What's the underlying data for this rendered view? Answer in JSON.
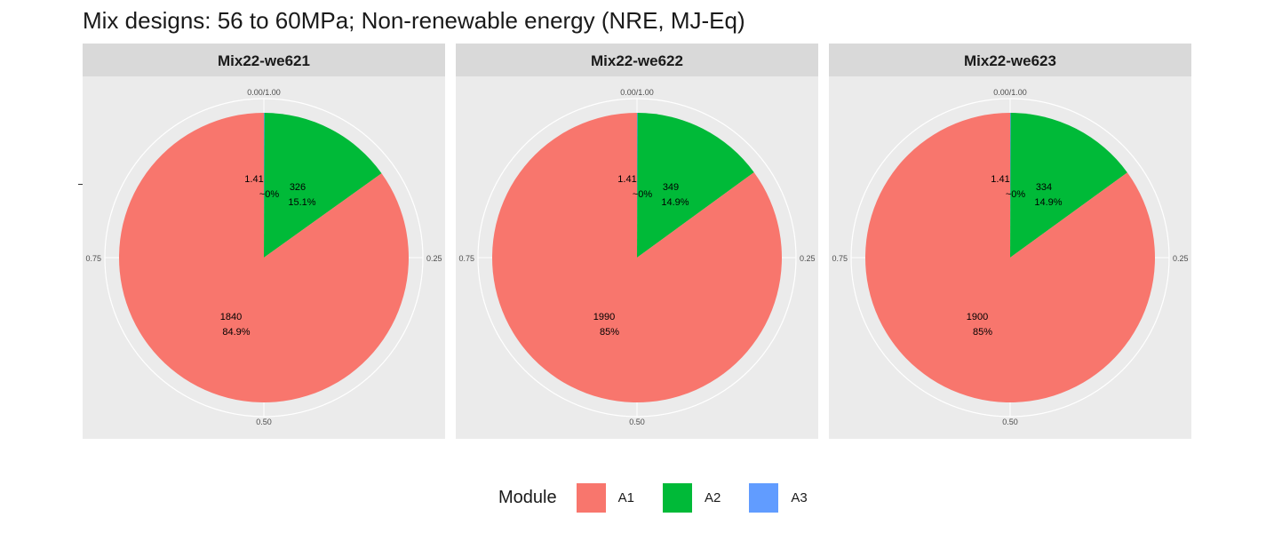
{
  "chart_data": {
    "type": "pie",
    "title": "Mix designs: 56 to 60MPa; Non-renewable energy (NRE, MJ-Eq)",
    "theta_ticks": [
      "0.00/1.00",
      "0.25",
      "0.50",
      "0.75"
    ],
    "legend": {
      "title": "Module",
      "entries": [
        {
          "name": "A1",
          "color": "#F8766D"
        },
        {
          "name": "A2",
          "color": "#00BA38"
        },
        {
          "name": "A3",
          "color": "#619CFF"
        }
      ]
    },
    "facets": [
      {
        "name": "Mix22-we621",
        "slices": [
          {
            "module": "A3",
            "value": 1.41,
            "percent": "~0%",
            "value_label": "1.41"
          },
          {
            "module": "A2",
            "value": 326,
            "percent": "15.1%",
            "value_label": "326"
          },
          {
            "module": "A1",
            "value": 1840,
            "percent": "84.9%",
            "value_label": "1840"
          }
        ]
      },
      {
        "name": "Mix22-we622",
        "slices": [
          {
            "module": "A3",
            "value": 1.41,
            "percent": "~0%",
            "value_label": "1.41"
          },
          {
            "module": "A2",
            "value": 349,
            "percent": "14.9%",
            "value_label": "349"
          },
          {
            "module": "A1",
            "value": 1990,
            "percent": "85%",
            "value_label": "1990"
          }
        ]
      },
      {
        "name": "Mix22-we623",
        "slices": [
          {
            "module": "A3",
            "value": 1.41,
            "percent": "~0%",
            "value_label": "1.41"
          },
          {
            "module": "A2",
            "value": 334,
            "percent": "14.9%",
            "value_label": "334"
          },
          {
            "module": "A1",
            "value": 1900,
            "percent": "85%",
            "value_label": "1900"
          }
        ]
      }
    ]
  }
}
